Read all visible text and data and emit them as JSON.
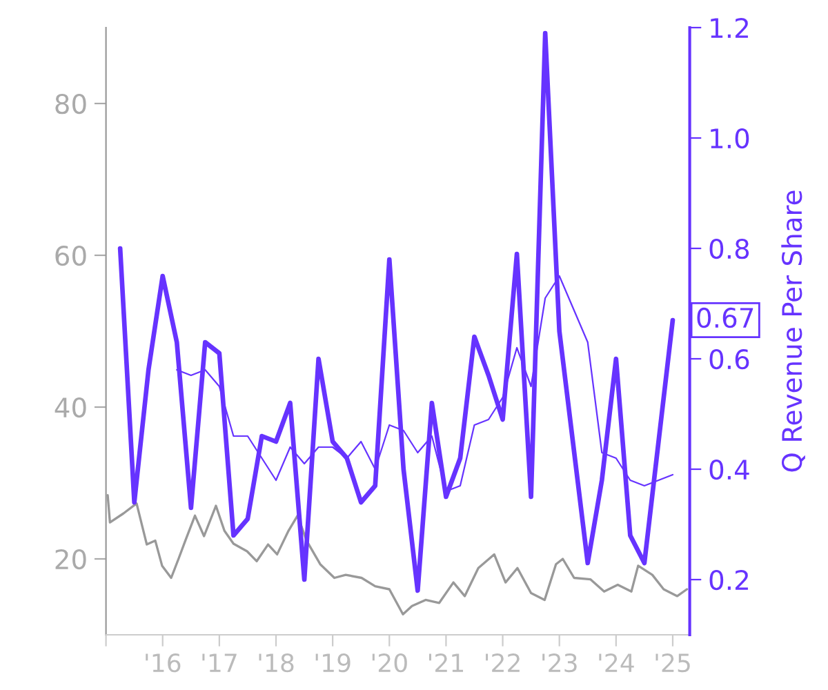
{
  "chart_data": {
    "type": "line",
    "y2label": "Q Revenue Per Share",
    "xlim": [
      2015,
      2025.3
    ],
    "xticks": [
      {
        "value": 2015,
        "label": null
      },
      {
        "value": 2016,
        "label": "'16"
      },
      {
        "value": 2017,
        "label": "'17"
      },
      {
        "value": 2018,
        "label": "'18"
      },
      {
        "value": 2019,
        "label": "'19"
      },
      {
        "value": 2020,
        "label": "'20"
      },
      {
        "value": 2021,
        "label": "'21"
      },
      {
        "value": 2022,
        "label": "'22"
      },
      {
        "value": 2023,
        "label": "'23"
      },
      {
        "value": 2024,
        "label": "'24"
      },
      {
        "value": 2025,
        "label": "'25"
      }
    ],
    "ylim": [
      10,
      90
    ],
    "yticks": [
      20,
      40,
      60,
      80
    ],
    "y2lim": [
      0.1,
      1.2
    ],
    "y2ticks": [
      0.2,
      0.4,
      0.6,
      0.8,
      {
        "value": 1.0,
        "label": "1.0"
      },
      1.2
    ],
    "grid": false,
    "legend": false,
    "annotations": [
      "0.67"
    ],
    "series": [
      {
        "color": "#999999",
        "x": [
          2015.03,
          2015.07,
          2015.31,
          2015.54,
          2015.72,
          2015.87,
          2015.99,
          2016.15,
          2016.28,
          2016.4,
          2016.57,
          2016.73,
          2016.94,
          2017.09,
          2017.25,
          2017.49,
          2017.66,
          2017.86,
          2018.02,
          2018.22,
          2018.38,
          2018.54,
          2018.78,
          2019.03,
          2019.23,
          2019.51,
          2019.75,
          2020.0,
          2020.24,
          2020.4,
          2020.64,
          2020.88,
          2021.13,
          2021.33,
          2021.57,
          2021.85,
          2022.05,
          2022.26,
          2022.5,
          2022.74,
          2022.94,
          2023.06,
          2023.26,
          2023.55,
          2023.79,
          2024.03,
          2024.27,
          2024.39,
          2024.64,
          2024.84,
          2025.08,
          2025.25
        ],
        "values": [
          28.4,
          24.8,
          26,
          27.3,
          21.9,
          22.4,
          19.1,
          17.5,
          20,
          22.4,
          25.7,
          23,
          27,
          23.7,
          22,
          21,
          19.7,
          21.9,
          20.6,
          23.7,
          25.7,
          22.4,
          19.3,
          17.5,
          17.9,
          17.5,
          16.4,
          16,
          12.7,
          13.8,
          14.6,
          14.2,
          16.9,
          15.1,
          18.8,
          20.6,
          16.9,
          18.8,
          15.5,
          14.6,
          19.3,
          20,
          17.5,
          17.3,
          15.7,
          16.6,
          15.7,
          19.1,
          17.9,
          16,
          15.1,
          16
        ]
      },
      {
        "color": "#6633ff",
        "axis": "y2",
        "x": [
          2015.25,
          2015.5,
          2015.75,
          2016.0,
          2016.25,
          2016.5,
          2016.75,
          2017.0,
          2017.25,
          2017.5,
          2017.75,
          2018.0,
          2018.25,
          2018.5,
          2018.75,
          2019.0,
          2019.25,
          2019.5,
          2019.75,
          2020.0,
          2020.25,
          2020.5,
          2020.75,
          2021.0,
          2021.25,
          2021.5,
          2021.75,
          2022.0,
          2022.25,
          2022.5,
          2022.75,
          2023.0,
          2023.25,
          2023.5,
          2023.75,
          2024.0,
          2024.25,
          2024.5,
          2024.75,
          2025.0
        ],
        "values": [
          0.8,
          0.34,
          0.58,
          0.75,
          0.63,
          0.33,
          0.63,
          0.61,
          0.28,
          0.31,
          0.46,
          0.45,
          0.52,
          0.2,
          0.6,
          0.45,
          0.42,
          0.34,
          0.37,
          0.78,
          0.4,
          0.18,
          0.52,
          0.35,
          0.42,
          0.64,
          0.57,
          0.49,
          0.79,
          0.35,
          1.19,
          0.65,
          0.44,
          0.23,
          0.38,
          0.6,
          0.28,
          0.23,
          0.45,
          0.67
        ]
      },
      {
        "color": "#6633ff",
        "axis": "y2",
        "x": [
          2016.25,
          2016.5,
          2016.75,
          2017.0,
          2017.25,
          2017.5,
          2017.75,
          2018.0,
          2018.25,
          2018.5,
          2018.75,
          2019.0,
          2019.25,
          2019.5,
          2019.75,
          2020.0,
          2020.25,
          2020.5,
          2020.75,
          2021.0,
          2021.25,
          2021.5,
          2021.75,
          2022.0,
          2022.25,
          2022.5,
          2022.75,
          2023.0,
          2023.25,
          2023.5,
          2023.75,
          2024.0,
          2024.25,
          2024.5,
          2024.75,
          2025.0
        ],
        "values": [
          0.58,
          0.57,
          0.58,
          0.55,
          0.46,
          0.46,
          0.42,
          0.38,
          0.44,
          0.41,
          0.44,
          0.44,
          0.42,
          0.45,
          0.4,
          0.48,
          0.47,
          0.43,
          0.46,
          0.36,
          0.37,
          0.48,
          0.49,
          0.53,
          0.62,
          0.55,
          0.71,
          0.75,
          0.69,
          0.63,
          0.43,
          0.42,
          0.38,
          0.37,
          0.38,
          0.39
        ]
      }
    ]
  }
}
